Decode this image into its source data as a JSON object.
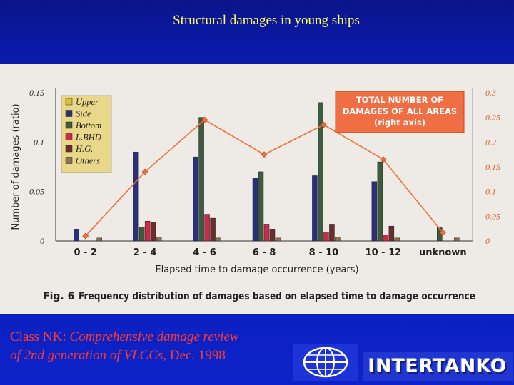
{
  "slide": {
    "title": "Structural damages in young ships"
  },
  "footer": {
    "org": "Class NK:",
    "line1_rest": " Comprehensive damage review",
    "line2_italic": "of 2nd generation of VLCCs",
    "line2_rest": ", Dec. 1998",
    "logo_text": "INTERTANKO",
    "globe_icon": "globe-icon"
  },
  "colors": {
    "slide_background": "#0d22c8",
    "title_text": "#ffff66",
    "footer_text": "#ff3b2e",
    "figure_background": "#eeebe7",
    "line_series": "#f07040",
    "annotation_box": "#f06e43"
  },
  "chart_data": {
    "type": "bar",
    "ylabel": "Number of damages (ratio)",
    "xlabel": "Elapsed time to damage occurrence (years)",
    "caption_number": "Fig. 6",
    "caption": "Frequency distribution of damages based on elapsed time to damage occurrence",
    "annotation": [
      "TOTAL NUMBER OF",
      "DAMAGES OF ALL AREAS",
      "(right axis)"
    ],
    "categories": [
      "0 - 2",
      "2 - 4",
      "4 - 6",
      "6 - 8",
      "8 - 10",
      "10 - 12",
      "unknown"
    ],
    "ylim": [
      0,
      0.15
    ],
    "yticks": [
      "0",
      "0.05",
      "0.1",
      "0.15"
    ],
    "y2lim": [
      0,
      0.3
    ],
    "y2ticks": [
      "0",
      "0.05",
      "0.1",
      "0.15",
      "0.2",
      "0.25",
      "0.3"
    ],
    "legend_position": "top-left",
    "grid": false,
    "series": [
      {
        "name": "Upper",
        "color": "#d9c23a",
        "values": [
          0,
          0,
          0,
          0,
          0,
          0,
          0
        ]
      },
      {
        "name": "Side",
        "color": "#2a2f7a",
        "values": [
          0.012,
          0.09,
          0.085,
          0.064,
          0.066,
          0.06,
          0
        ]
      },
      {
        "name": "Bottom",
        "color": "#3c5a3e",
        "values": [
          0,
          0.014,
          0.125,
          0.07,
          0.14,
          0.08,
          0.014
        ]
      },
      {
        "name": "L.BHD",
        "color": "#d0284a",
        "values": [
          0,
          0.02,
          0.027,
          0.017,
          0.009,
          0.006,
          0
        ]
      },
      {
        "name": "H.G.",
        "color": "#6b2e2a",
        "values": [
          0,
          0.019,
          0.023,
          0.012,
          0.017,
          0.015,
          0
        ]
      },
      {
        "name": "Others",
        "color": "#8d7352",
        "values": [
          0.003,
          0.004,
          0.003,
          0.003,
          0.004,
          0.003,
          0.003
        ]
      }
    ],
    "line_series": {
      "name": "TOTAL NUMBER OF DAMAGES OF ALL AREAS",
      "axis": "right",
      "values": [
        0.01,
        0.14,
        0.245,
        0.175,
        0.235,
        0.165,
        0.017
      ]
    }
  }
}
